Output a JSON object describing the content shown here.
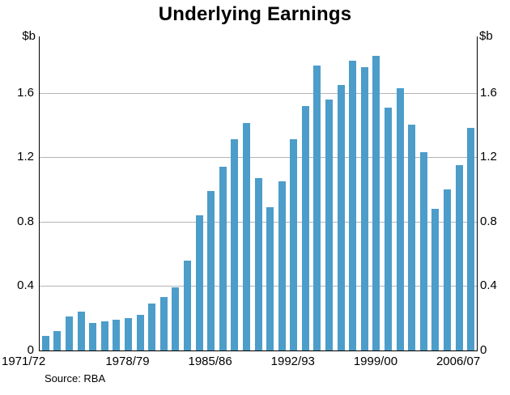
{
  "title": "Underlying Earnings",
  "source": "Source: RBA",
  "y_unit_left": "$b",
  "y_unit_right": "$b",
  "colors": {
    "bar": "#4C9DC9",
    "grid": "#b5b5b5",
    "axis": "#000000"
  },
  "chart_data": {
    "type": "bar",
    "title": "Underlying Earnings",
    "ylabel": "$b",
    "categories": [
      "1971/72",
      "1972/73",
      "1973/74",
      "1974/75",
      "1975/76",
      "1976/77",
      "1977/78",
      "1978/79",
      "1979/80",
      "1980/81",
      "1981/82",
      "1982/83",
      "1983/84",
      "1984/85",
      "1985/86",
      "1986/87",
      "1987/88",
      "1988/89",
      "1989/90",
      "1990/91",
      "1991/92",
      "1992/93",
      "1993/94",
      "1994/95",
      "1995/96",
      "1996/97",
      "1997/98",
      "1998/99",
      "1999/00",
      "2000/01",
      "2001/02",
      "2002/03",
      "2003/04",
      "2004/05",
      "2005/06",
      "2006/07",
      "2007/08"
    ],
    "values": [
      0.09,
      0.12,
      0.21,
      0.24,
      0.17,
      0.18,
      0.19,
      0.2,
      0.22,
      0.29,
      0.33,
      0.39,
      0.56,
      0.84,
      0.99,
      1.14,
      1.31,
      1.41,
      1.07,
      0.89,
      1.05,
      1.31,
      1.52,
      1.77,
      1.56,
      1.65,
      1.8,
      1.76,
      1.83,
      1.51,
      1.63,
      1.4,
      1.23,
      0.88,
      1.0,
      1.15,
      1.38
    ],
    "x_tick_labels": [
      "1971/72",
      "1978/79",
      "1985/86",
      "1992/93",
      "1999/00",
      "2006/07"
    ],
    "x_tick_indices": [
      0,
      7,
      14,
      21,
      28,
      35
    ],
    "y_ticks": [
      0,
      0.4,
      0.8,
      1.2,
      1.6
    ],
    "ylim": [
      0,
      1.95
    ],
    "grid": "horizontal",
    "legend": "none",
    "source": "Source: RBA"
  }
}
